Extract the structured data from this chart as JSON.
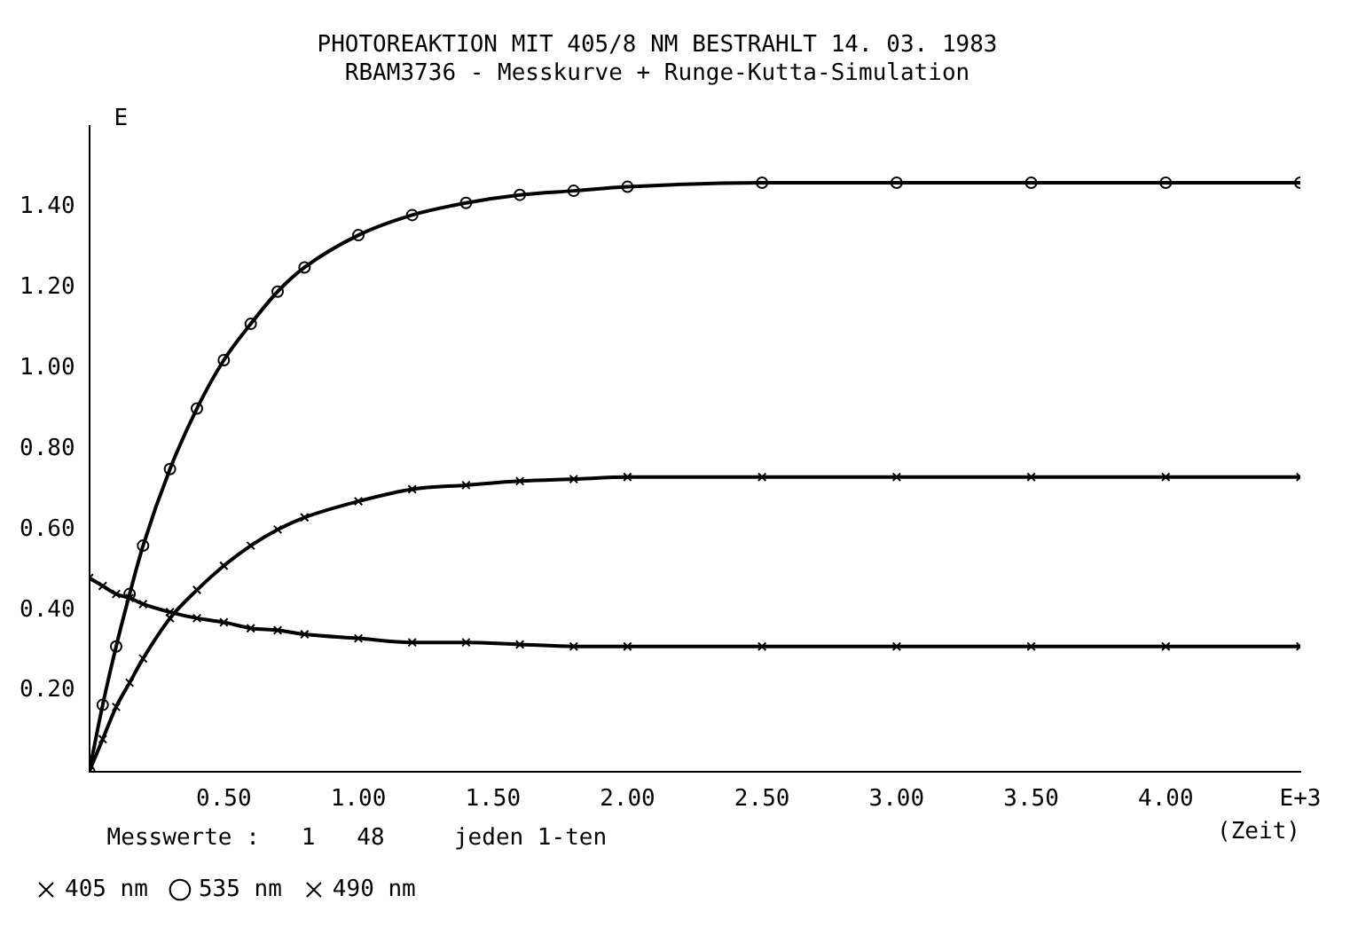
{
  "chart_data": {
    "type": "line",
    "title": "PHOTOREAKTION MIT 405/8 NM BESTRAHLT 14. 03. 1983",
    "subtitle": "RBAM3736 - Messkurve + Runge-Kutta-Simulation",
    "ylabel": "E",
    "xlabel": "(Zeit)",
    "annotations": [
      "Messwerte :   1   48     jeden 1-ten"
    ],
    "x": [
      0,
      0.05,
      0.1,
      0.15,
      0.2,
      0.3,
      0.4,
      0.5,
      0.6,
      0.7,
      0.8,
      1.0,
      1.2,
      1.4,
      1.6,
      1.8,
      2.0,
      2.5,
      3.0,
      3.5,
      4.0,
      4.5
    ],
    "series": [
      {
        "name": "405 nm",
        "color": "#000000",
        "marker": "cross",
        "values": [
          0.48,
          0.46,
          0.44,
          0.43,
          0.415,
          0.395,
          0.38,
          0.37,
          0.355,
          0.35,
          0.34,
          0.33,
          0.32,
          0.32,
          0.315,
          0.31,
          0.31,
          0.31,
          0.31,
          0.31,
          0.31,
          0.31
        ]
      },
      {
        "name": "535 nm",
        "color": "#000000",
        "marker": "circle",
        "values": [
          0,
          0.165,
          0.31,
          0.44,
          0.56,
          0.75,
          0.9,
          1.02,
          1.11,
          1.19,
          1.25,
          1.33,
          1.38,
          1.41,
          1.43,
          1.44,
          1.45,
          1.46,
          1.46,
          1.46,
          1.46,
          1.46
        ]
      },
      {
        "name": "490 nm",
        "color": "#000000",
        "marker": "cross",
        "values": [
          0,
          0.08,
          0.16,
          0.22,
          0.28,
          0.38,
          0.45,
          0.51,
          0.56,
          0.6,
          0.63,
          0.67,
          0.7,
          0.71,
          0.72,
          0.725,
          0.73,
          0.73,
          0.73,
          0.73,
          0.73,
          0.73
        ]
      }
    ],
    "xlim": [
      0,
      4.5
    ],
    "ylim": [
      0,
      1.6
    ],
    "xticks": [
      {
        "value": 0.5,
        "label": "0.50"
      },
      {
        "value": 1,
        "label": "1.00"
      },
      {
        "value": 1.5,
        "label": "1.50"
      },
      {
        "value": 2,
        "label": "2.00"
      },
      {
        "value": 2.5,
        "label": "2.50"
      },
      {
        "value": 3,
        "label": "3.00"
      },
      {
        "value": 3.5,
        "label": "3.50"
      },
      {
        "value": 4,
        "label": "4.00"
      },
      {
        "value": 4.5,
        "label": "E+3"
      }
    ],
    "yticks": [
      {
        "value": 0.2,
        "label": "0.20"
      },
      {
        "value": 0.4,
        "label": "0.40"
      },
      {
        "value": 0.6,
        "label": "0.60"
      },
      {
        "value": 0.8,
        "label": "0.80"
      },
      {
        "value": 1,
        "label": "1.00"
      },
      {
        "value": 1.2,
        "label": "1.20"
      },
      {
        "value": 1.4,
        "label": "1.40"
      }
    ],
    "grid": false,
    "legend": "bottom left"
  }
}
